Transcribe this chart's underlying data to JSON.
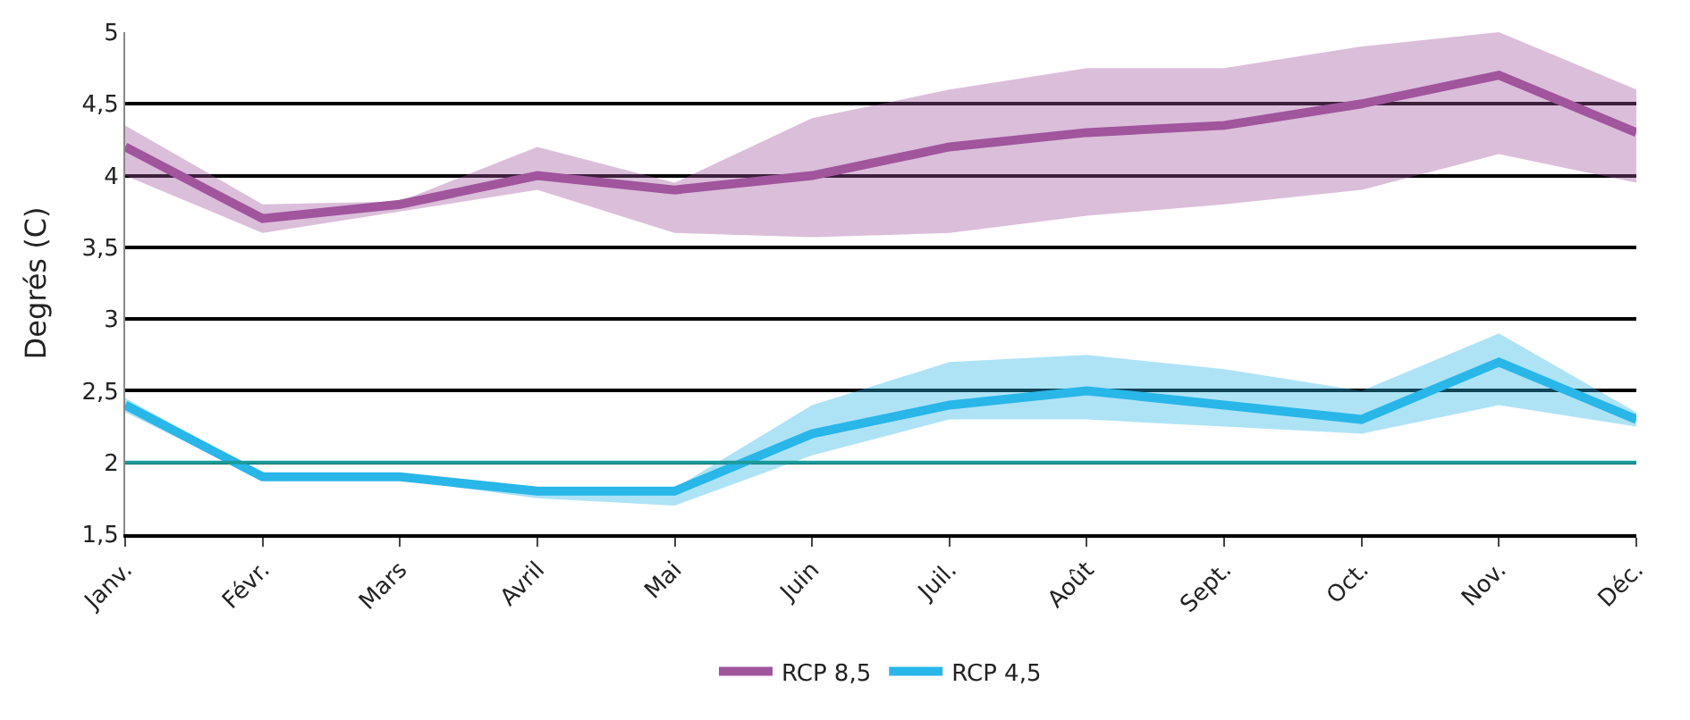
{
  "chart_data": {
    "type": "line",
    "ylabel": "Degrés (C)",
    "categories": [
      "Janv.",
      "Févr.",
      "Mars",
      "Avril",
      "Mai",
      "Juin",
      "Juil.",
      "Août",
      "Sept.",
      "Oct.",
      "Nov.",
      "Déc."
    ],
    "series": [
      {
        "name": "RCP 8,5",
        "color": "#a0559d",
        "values": [
          4.2,
          3.7,
          3.8,
          4.0,
          3.9,
          4.0,
          4.2,
          4.3,
          4.35,
          4.5,
          4.7,
          4.3
        ],
        "lower": [
          4.0,
          3.6,
          3.75,
          3.9,
          3.6,
          3.57,
          3.6,
          3.72,
          3.8,
          3.9,
          4.15,
          3.95
        ],
        "upper": [
          4.35,
          3.8,
          3.82,
          4.2,
          3.95,
          4.4,
          4.6,
          4.75,
          4.75,
          4.9,
          5.0,
          4.6
        ]
      },
      {
        "name": "RCP 4,5",
        "color": "#29b6e8",
        "values": [
          2.4,
          1.9,
          1.9,
          1.8,
          1.8,
          2.2,
          2.4,
          2.5,
          2.4,
          2.3,
          2.7,
          2.3
        ],
        "lower": [
          2.35,
          1.88,
          1.88,
          1.75,
          1.7,
          2.05,
          2.3,
          2.3,
          2.25,
          2.2,
          2.4,
          2.25
        ],
        "upper": [
          2.45,
          1.92,
          1.92,
          1.82,
          1.82,
          2.4,
          2.7,
          2.75,
          2.65,
          2.5,
          2.9,
          2.35
        ]
      }
    ],
    "ylim": [
      1.5,
      5
    ],
    "yticks": [
      {
        "value": 1.5,
        "label": "1,5"
      },
      {
        "value": 2,
        "label": "2"
      },
      {
        "value": 2.5,
        "label": "2,5"
      },
      {
        "value": 3,
        "label": "3"
      },
      {
        "value": 3.5,
        "label": "3,5"
      },
      {
        "value": 4,
        "label": "4"
      },
      {
        "value": 4.5,
        "label": "4,5"
      },
      {
        "value": 5,
        "label": "5"
      }
    ],
    "grid": "y",
    "ref_lines": [
      {
        "axis": "y",
        "value": 2,
        "color": "#1a9a9a"
      }
    ],
    "legend": "bottom",
    "line_style": "solid",
    "marker": "none"
  }
}
